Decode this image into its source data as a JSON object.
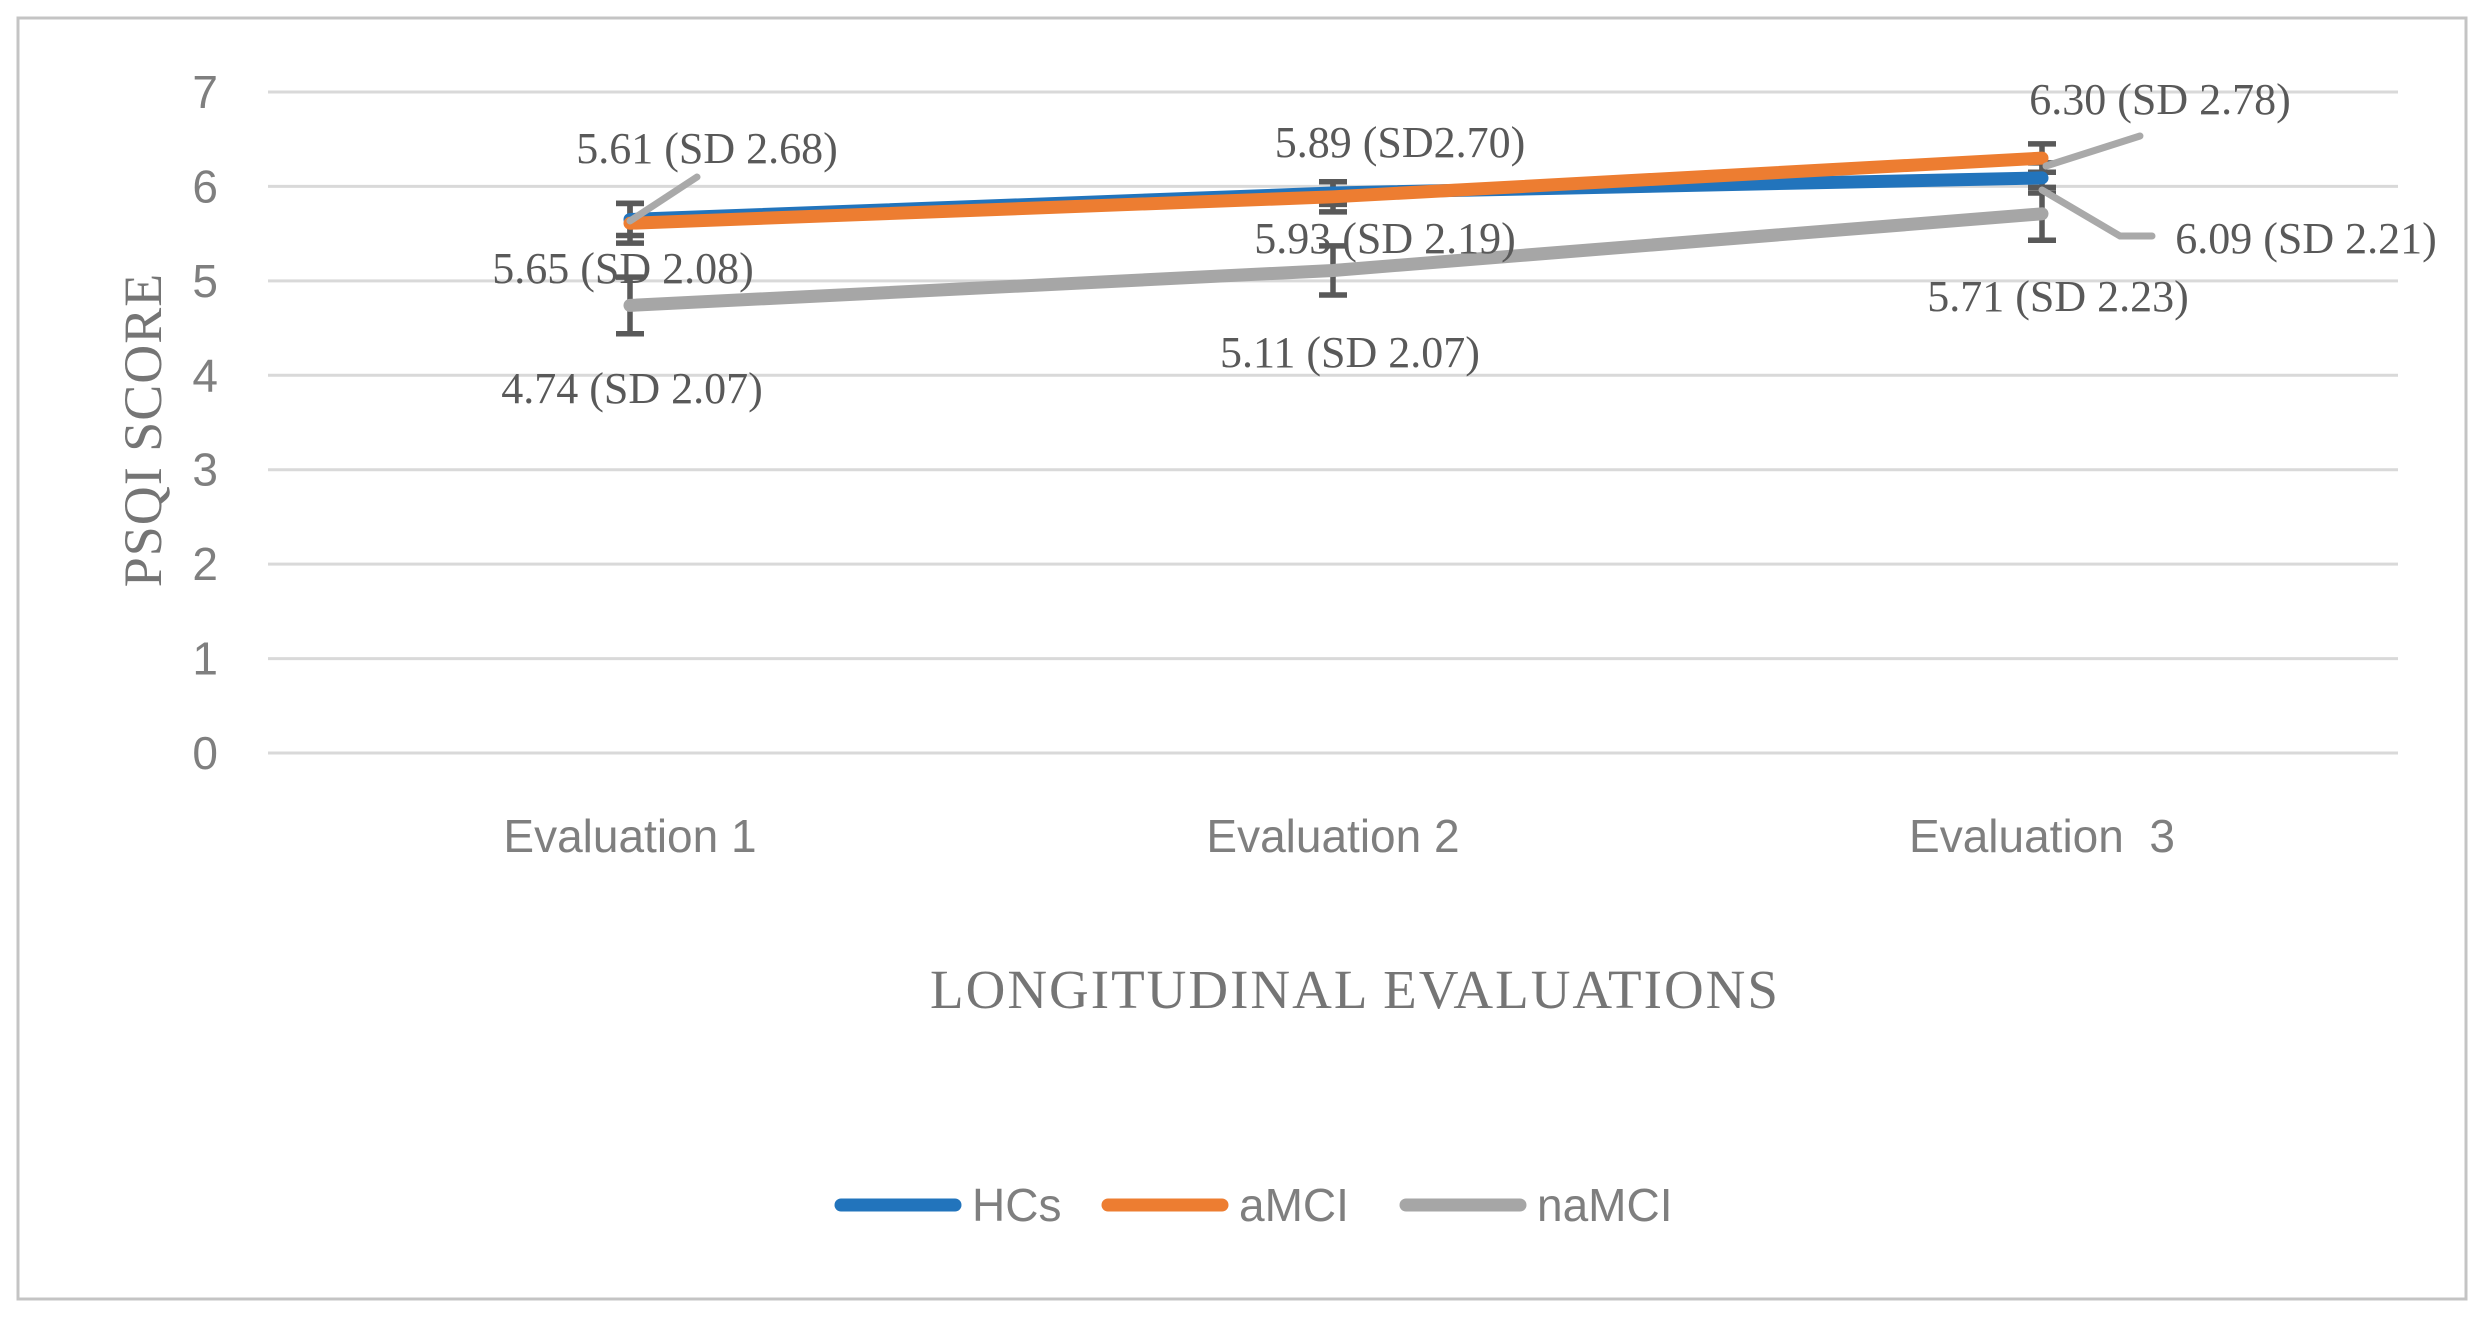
{
  "figure": {
    "background_color": "#FFFFFF",
    "border_color": "#C4C4C4"
  },
  "chart_data": {
    "type": "line",
    "title": "",
    "xlabel": "LONGITUDINAL EVALUATIONS",
    "ylabel": "PSQI SCORE",
    "categories": [
      "Evaluation 1",
      "Evaluation 2",
      "Evaluation  3"
    ],
    "ylim": [
      0,
      7
    ],
    "yticks": [
      0,
      1,
      2,
      3,
      4,
      5,
      6,
      7
    ],
    "grid": true,
    "gridline_color": "#D9D9D9",
    "error_bar_color": "#595959",
    "leader_line_color": "#A9A9A9",
    "legend_position": "bottom",
    "series": [
      {
        "name": "HCs",
        "color": "#2274BC",
        "values": [
          5.65,
          5.93,
          6.09
        ],
        "sd": [
          2.08,
          2.19,
          2.21
        ],
        "error_bar_extent": [
          0.17,
          0.12,
          0.16
        ],
        "point_labels": [
          "5.65 (SD 2.08)",
          "5.93 (SD 2.19)",
          "6.09 (SD 2.21)"
        ]
      },
      {
        "name": "aMCI",
        "color": "#ED7D31",
        "values": [
          5.61,
          5.89,
          6.3
        ],
        "sd": [
          2.68,
          2.7,
          2.78
        ],
        "error_bar_extent": [
          0.21,
          0.16,
          0.15
        ],
        "point_labels": [
          "5.61 (SD 2.68)",
          "5.89 (SD2.70)",
          "6.30 (SD 2.78)"
        ]
      },
      {
        "name": "naMCI",
        "color": "#A6A6A6",
        "values": [
          4.74,
          5.11,
          5.71
        ],
        "sd": [
          2.07,
          2.07,
          2.23
        ],
        "error_bar_extent": [
          0.3,
          0.26,
          0.28
        ],
        "point_labels": [
          "4.74 (SD 2.07)",
          "5.11 (SD 2.07)",
          "5.71 (SD 2.23)"
        ]
      }
    ]
  }
}
